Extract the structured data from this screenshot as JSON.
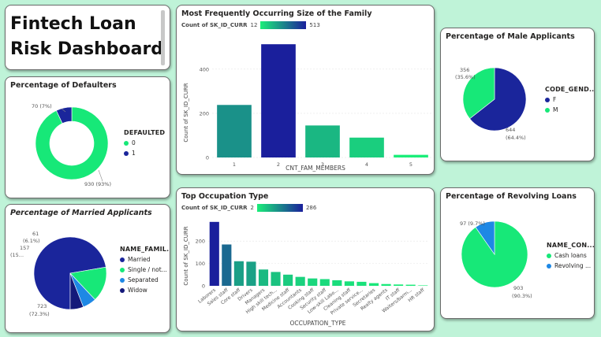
{
  "dashboard": {
    "title_line1": "Fintech Loan",
    "title_line2": "Risk Dashboard"
  },
  "colors": {
    "green": "#17e878",
    "navy": "#1a259b",
    "blue": "#1e88e5",
    "bg": "#bff3d8"
  },
  "defaulters": {
    "title": "Percentage of Defaulters",
    "legend_title": "DEFAULTED",
    "legend": [
      "0",
      "1"
    ],
    "label_small": "70 (7%)",
    "label_large": "930 (93%)",
    "chart_data": {
      "type": "pie",
      "donut": true,
      "categories": [
        "0",
        "1"
      ],
      "values": [
        930,
        70
      ]
    }
  },
  "married": {
    "title": "Percentage of Married Applicants",
    "legend_title": "NAME_FAMIL...",
    "legend": [
      "Married",
      "Single / not...",
      "Separated",
      "Widow"
    ],
    "labels": {
      "a": "61",
      "b": "(6.1%)",
      "c": "157",
      "d": "(15...",
      "e": "723",
      "f": "(72.3%)"
    },
    "chart_data": {
      "type": "pie",
      "categories": [
        "Married",
        "Single / not...",
        "Separated",
        "Widow"
      ],
      "values": [
        723,
        157,
        61,
        59
      ]
    }
  },
  "family": {
    "title": "Most Frequently Occurring Size of the Family",
    "grad_label": "Count of SK_ID_CURR",
    "grad_min": "12",
    "grad_max": "513",
    "ylabel": "Count of SK_ID_CURR",
    "xlabel": "CNT_FAM_MEMBERS",
    "yticks": [
      "0",
      "200",
      "400"
    ],
    "chart_data": {
      "type": "bar",
      "categories": [
        "1",
        "2",
        "3",
        "4",
        "5"
      ],
      "values": [
        238,
        513,
        145,
        90,
        12
      ],
      "ylim": [
        0,
        560
      ],
      "xlabel": "CNT_FAM_MEMBERS",
      "ylabel": "Count of SK_ID_CURR"
    }
  },
  "occupation": {
    "title": "Top Occupation Type",
    "grad_label": "Count of SK_ID_CURR",
    "grad_min": "2",
    "grad_max": "286",
    "ylabel": "Count of SK_ID_CURR",
    "xlabel": "OCCUPATION_TYPE",
    "yticks": [
      "0",
      "100",
      "200"
    ],
    "chart_data": {
      "type": "bar",
      "categories": [
        "Laborers",
        "Sales staff",
        "Core staff",
        "Drivers",
        "Managers",
        "High skill tech...",
        "Medicine staff",
        "Accountants",
        "Cooking staff",
        "Security staff",
        "Low-skill Labo...",
        "Cleaning staff",
        "Private service...",
        "Secretaries",
        "Realty agents",
        "IT staff",
        "Waiters/barm...",
        "HR staff"
      ],
      "values": [
        286,
        185,
        110,
        108,
        73,
        62,
        50,
        40,
        33,
        30,
        25,
        20,
        18,
        12,
        8,
        6,
        5,
        2
      ],
      "ylim": [
        0,
        310
      ],
      "xlabel": "OCCUPATION_TYPE",
      "ylabel": "Count of SK_ID_CURR"
    }
  },
  "male": {
    "title": "Percentage of Male Applicants",
    "legend_title": "CODE_GEND...",
    "legend": [
      "F",
      "M"
    ],
    "labels": {
      "a": "356",
      "b": "(35.6%)",
      "c": "644",
      "d": "(64.4%)"
    },
    "chart_data": {
      "type": "pie",
      "categories": [
        "F",
        "M"
      ],
      "values": [
        644,
        356
      ]
    }
  },
  "revolving": {
    "title": "Percentage of Revolving Loans",
    "legend_title": "NAME_CON...",
    "legend": [
      "Cash loans",
      "Revolving ..."
    ],
    "labels": {
      "a": "97 (9.7%)",
      "b": "903",
      "c": "(90.3%)"
    },
    "chart_data": {
      "type": "pie",
      "categories": [
        "Cash loans",
        "Revolving ..."
      ],
      "values": [
        903,
        97
      ]
    }
  }
}
